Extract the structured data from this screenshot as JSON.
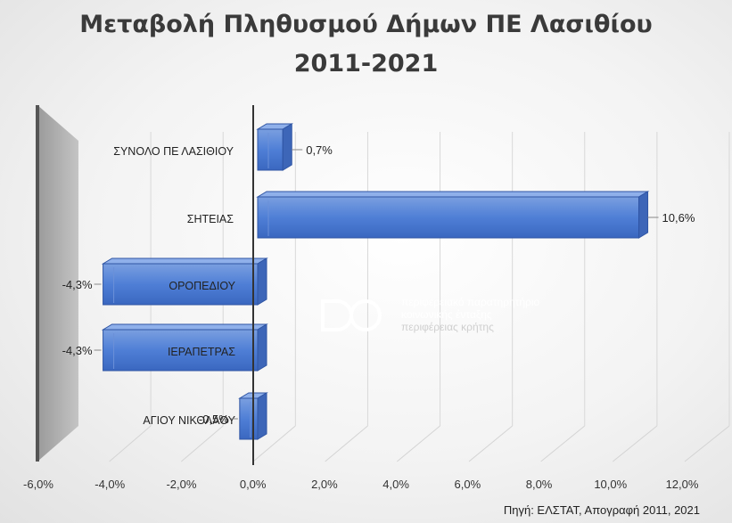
{
  "chart_data": {
    "type": "bar",
    "orientation": "horizontal",
    "title_line1": "Μεταβολή Πληθυσμού Δήμων ΠΕ Λασιθίου",
    "title_line2": "2011-2021",
    "categories": [
      "ΣΥΝΟΛΟ ΠΕ ΛΑΣΙΘΙΟΥ",
      "ΣΗΤΕΙΑΣ",
      "ΟΡΟΠΕΔΙΟΥ",
      "ΙΕΡΑΠΕΤΡΑΣ",
      "ΑΓΙΟΥ ΝΙΚΟΛΑΟΥ"
    ],
    "values": [
      0.7,
      10.6,
      -4.3,
      -4.3,
      -0.5
    ],
    "value_labels": [
      "0,7%",
      "10,6%",
      "-4,3%",
      "-4,3%",
      "-0,5%"
    ],
    "xlim": [
      -6,
      12
    ],
    "x_ticks": [
      -6,
      -4,
      -2,
      0,
      2,
      4,
      6,
      8,
      10,
      12
    ],
    "x_tick_labels": [
      "-6,0%",
      "-4,0%",
      "-2,0%",
      "0,0%",
      "2,0%",
      "4,0%",
      "6,0%",
      "8,0%",
      "10,0%",
      "12,0%"
    ],
    "grid": true,
    "bar_color": "#4472c4",
    "style": "3d"
  },
  "source": "Πηγή: ΕΛΣΤΑΤ, Απογραφή 2011, 2021",
  "watermark": {
    "line1": "περιφερειακό παρατηρητήριο",
    "line2": "κοινωνικής ένταξης",
    "line3": "περιφέρειας κρήτης"
  }
}
